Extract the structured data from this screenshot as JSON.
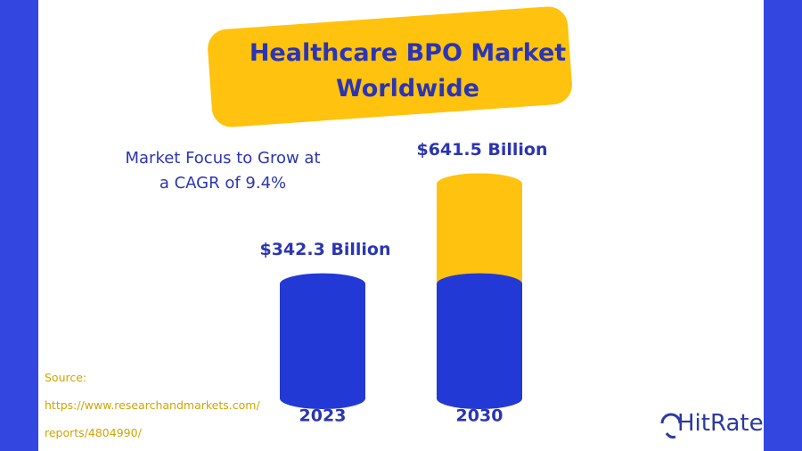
{
  "chart_data": {
    "type": "bar",
    "title": "Healthcare BPO Market Worldwide",
    "subtitle": "Market Focus to Grow at a CAGR of 9.4%",
    "categories": [
      "2023",
      "2030"
    ],
    "values": [
      342.3,
      641.5
    ],
    "value_labels": [
      "$342.3 Billion",
      "$641.5 Billion"
    ],
    "colors": [
      "#2339d6",
      "#ffc20e"
    ],
    "source": [
      "Source:",
      "https://www.researchandmarkets.com/",
      "reports/4804990/"
    ],
    "brand": "HitRate"
  }
}
